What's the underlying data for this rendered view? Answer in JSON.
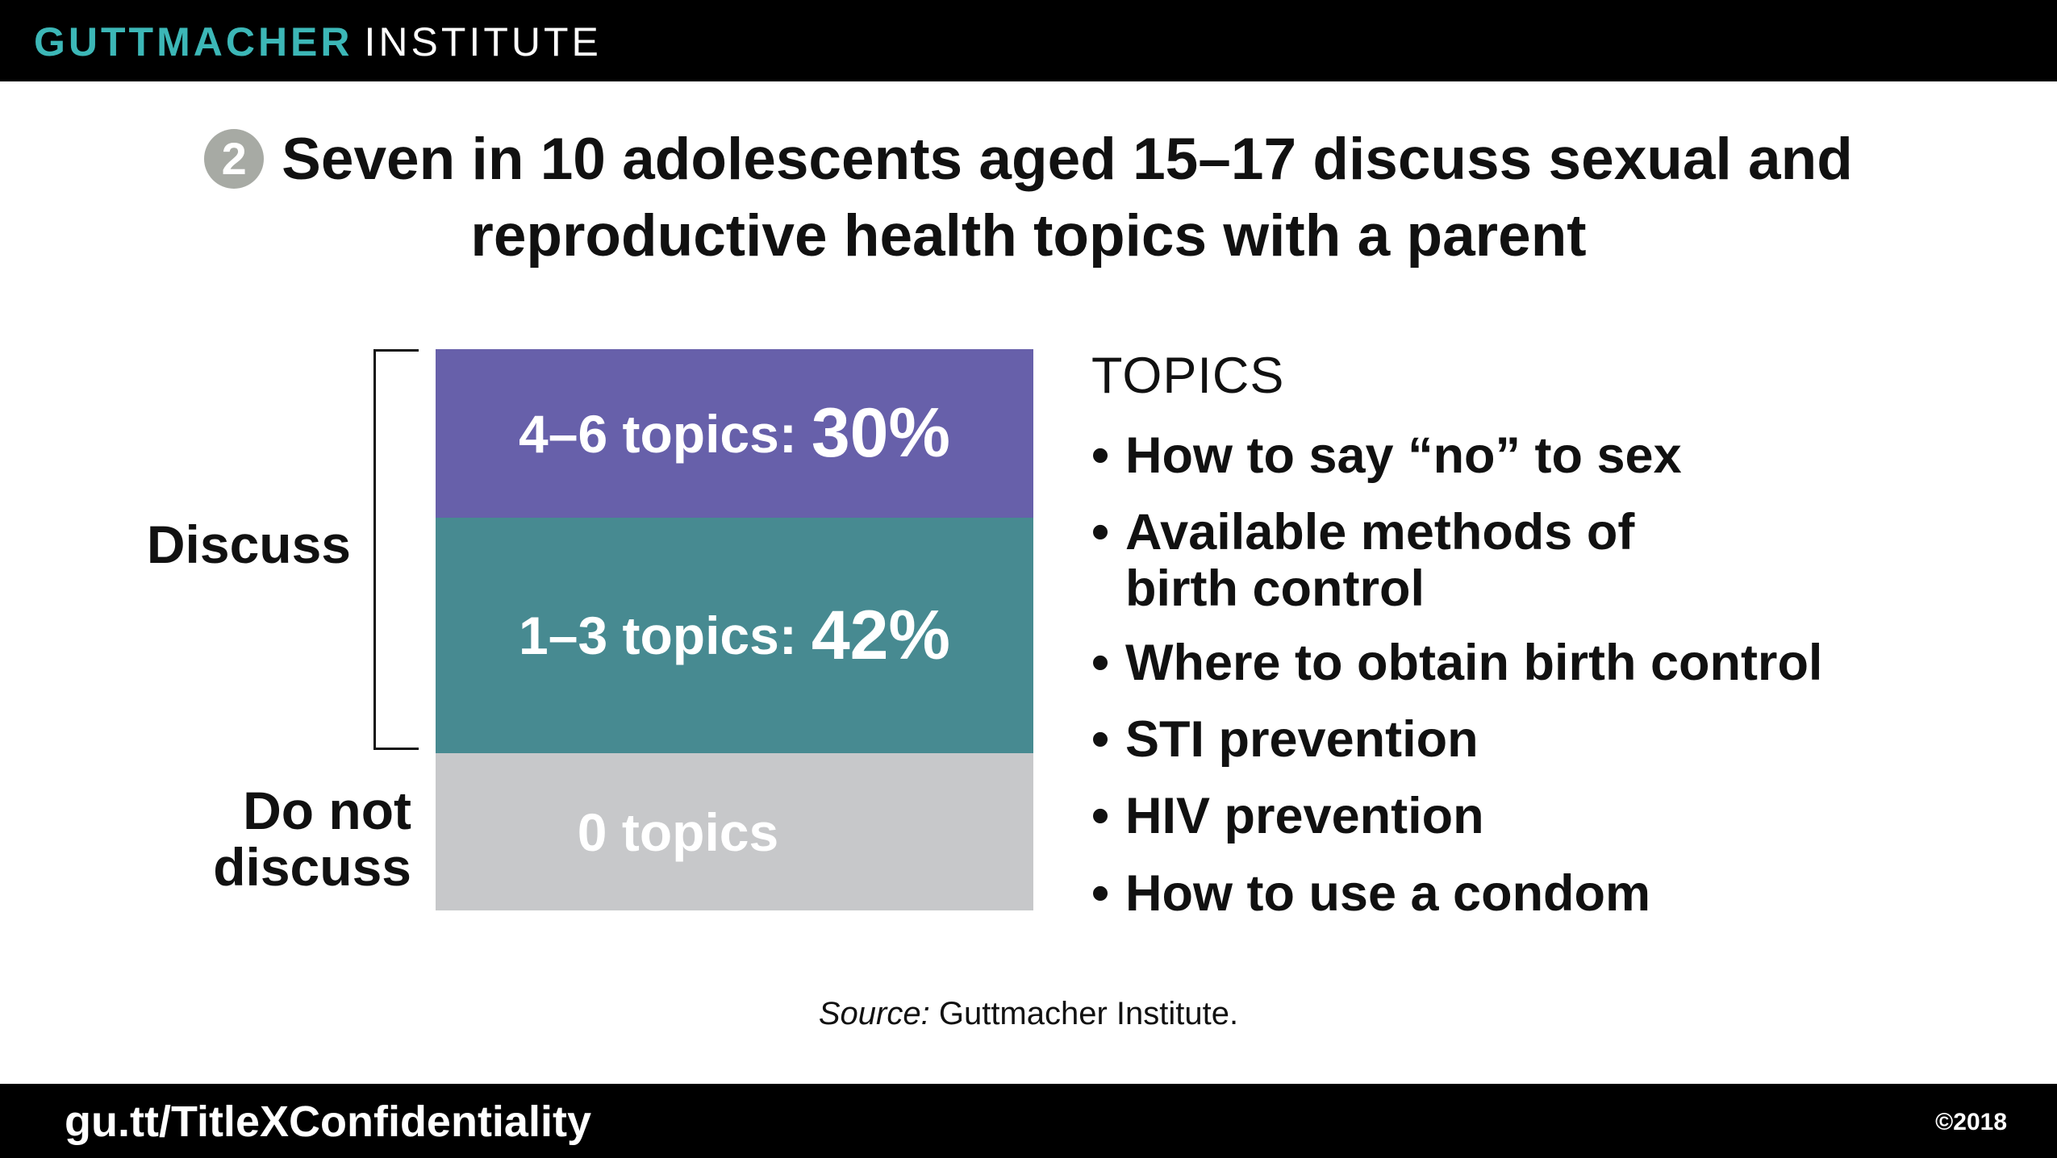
{
  "header": {
    "brand_primary": "GUTTMACHER",
    "brand_secondary": "INSTITUTE",
    "brand_color": "#3cb7b7"
  },
  "title": {
    "number": "2",
    "line1": "Seven in 10 adolescents aged 15–17 discuss sexual and",
    "line2": "reproductive health topics with a parent"
  },
  "groups": {
    "discuss": "Discuss",
    "not_discuss_line1": "Do not",
    "not_discuss_line2": "discuss"
  },
  "chart_data": {
    "type": "bar",
    "stacked": true,
    "title": "Seven in 10 adolescents aged 15–17 discuss sexual and reproductive health topics with a parent",
    "categories": [
      "4–6 topics",
      "1–3 topics",
      "0 topics"
    ],
    "values": [
      30,
      42,
      28
    ],
    "labels": [
      "4–6 topics:",
      "1–3 topics:",
      "0 topics"
    ],
    "value_labels": [
      "30%",
      "42%",
      ""
    ],
    "colors": [
      "#6760aa",
      "#478a91",
      "#c7c8ca"
    ],
    "groups": [
      {
        "name": "Discuss",
        "categories": [
          "4–6 topics",
          "1–3 topics"
        ]
      },
      {
        "name": "Do not discuss",
        "categories": [
          "0 topics"
        ]
      }
    ],
    "legend": false,
    "grid": false
  },
  "topics": {
    "heading": "TOPICS",
    "bullet": "•",
    "items": [
      {
        "line1": "How to say “no” to sex",
        "line2": ""
      },
      {
        "line1": "Available methods of",
        "line2": "birth control"
      },
      {
        "line1": "Where to obtain birth control",
        "line2": ""
      },
      {
        "line1": "STI prevention",
        "line2": ""
      },
      {
        "line1": "HIV prevention",
        "line2": ""
      },
      {
        "line1": "How to use a condom",
        "line2": ""
      }
    ]
  },
  "source": {
    "label": "Source:",
    "text": "Guttmacher Institute."
  },
  "footer": {
    "url": "gu.tt/TitleXConfidentiality",
    "copyright": "©2018"
  }
}
